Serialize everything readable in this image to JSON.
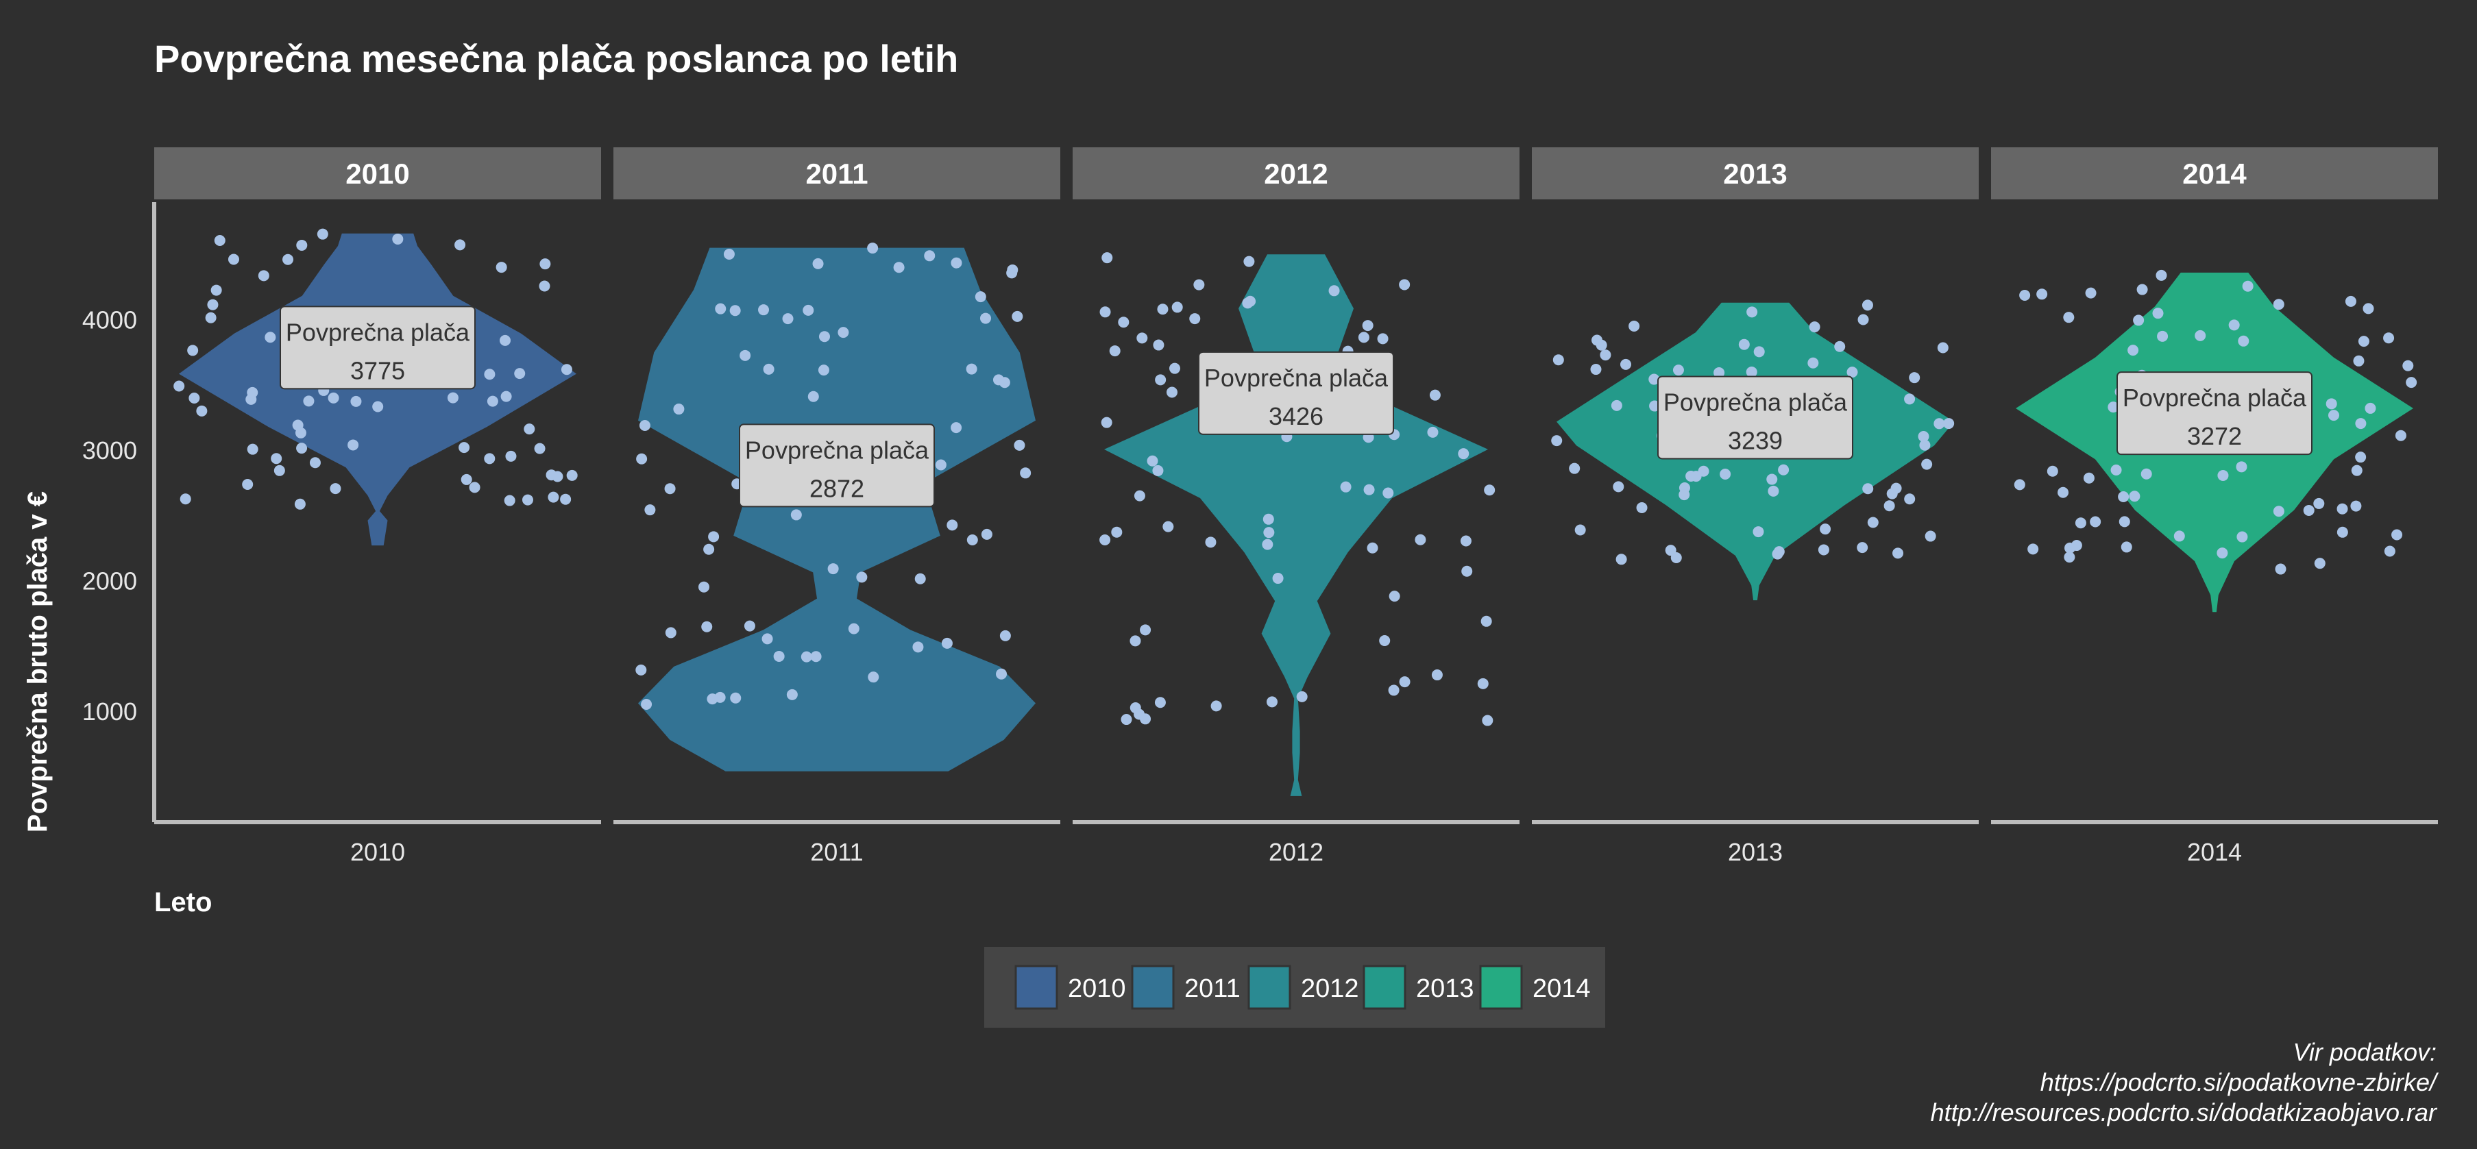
{
  "chart_data": {
    "type": "violin",
    "title": "Povprečna mesečna plača poslanca po letih",
    "xlabel": "Leto",
    "ylabel": "Povprečna bruto plača v €",
    "ylim": [
      150,
      4900
    ],
    "yticks": [
      1000,
      2000,
      3000,
      4000
    ],
    "categories": [
      "2010",
      "2011",
      "2012",
      "2013",
      "2014"
    ],
    "colors": [
      "#3d6496",
      "#337394",
      "#2a8a92",
      "#249a8a",
      "#25ab82"
    ],
    "point_color": "#a9c3e6",
    "mean_label": "Povprečna plača",
    "means": [
      3775,
      2872,
      3426,
      3239,
      3272
    ],
    "ranges": [
      [
        2270,
        4660
      ],
      [
        540,
        4550
      ],
      [
        350,
        4500
      ],
      [
        1850,
        4130
      ],
      [
        1760,
        4360
      ]
    ],
    "legend": {
      "position": "bottom",
      "title": ""
    },
    "caption": [
      "Vir podatkov:",
      "https://podcrto.si/podatkovne-zbirke/",
      "http://resources.podcrto.si/dodatkizaobjavo.rar"
    ]
  }
}
